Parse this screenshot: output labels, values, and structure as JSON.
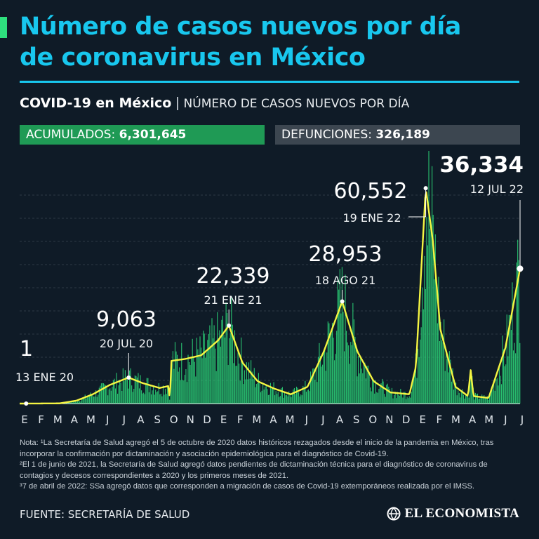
{
  "header": {
    "title_line1": "Número de casos nuevos por día",
    "title_line2": "de coronavirus en México"
  },
  "subtitle": {
    "bold": "COVID-19 en México",
    "separator": "|",
    "light": "NÚMERO DE CASOS NUEVOS POR DÍA"
  },
  "stats": {
    "cumulative_label": "ACUMULADOS:",
    "cumulative_value": "6,301,645",
    "deaths_label": "DEFUNCIONES:",
    "deaths_value": "326,189"
  },
  "colors": {
    "background": "#0f1b27",
    "title": "#18c7ee",
    "bars": "#2ee07e",
    "line": "#f5f542",
    "green_box": "#1f9a55",
    "gray_box": "#3c4650"
  },
  "chart_data": {
    "type": "bar",
    "overlay": "line",
    "title": "",
    "xlabel": "",
    "ylabel": "",
    "ylim": [
      0,
      62000
    ],
    "grid": true,
    "month_ticks": [
      "E",
      "F",
      "M",
      "A",
      "M",
      "J",
      "J",
      "A",
      "S",
      "O",
      "N",
      "D",
      "E",
      "F",
      "M",
      "A",
      "M",
      "J",
      "J",
      "A",
      "S",
      "O",
      "N",
      "D",
      "E",
      "F",
      "M",
      "A",
      "M",
      "J",
      "J"
    ],
    "trend_anchors": [
      {
        "date": "2020-01-13",
        "value": 1
      },
      {
        "date": "2020-03-15",
        "value": 50
      },
      {
        "date": "2020-04-15",
        "value": 800
      },
      {
        "date": "2020-05-15",
        "value": 2500
      },
      {
        "date": "2020-06-15",
        "value": 5000
      },
      {
        "date": "2020-07-20",
        "value": 7000
      },
      {
        "date": "2020-08-15",
        "value": 5500
      },
      {
        "date": "2020-09-15",
        "value": 4200
      },
      {
        "date": "2020-10-01",
        "value": 4700
      },
      {
        "date": "2020-10-04",
        "value": 1000
      },
      {
        "date": "2020-10-07",
        "value": 11500
      },
      {
        "date": "2020-11-01",
        "value": 12000
      },
      {
        "date": "2020-12-01",
        "value": 13000
      },
      {
        "date": "2021-01-01",
        "value": 17000
      },
      {
        "date": "2021-01-21",
        "value": 21000
      },
      {
        "date": "2021-02-15",
        "value": 11000
      },
      {
        "date": "2021-03-15",
        "value": 6000
      },
      {
        "date": "2021-04-15",
        "value": 4000
      },
      {
        "date": "2021-05-15",
        "value": 2500
      },
      {
        "date": "2021-06-15",
        "value": 4500
      },
      {
        "date": "2021-07-15",
        "value": 14000
      },
      {
        "date": "2021-08-18",
        "value": 27500
      },
      {
        "date": "2021-09-15",
        "value": 14000
      },
      {
        "date": "2021-10-15",
        "value": 6000
      },
      {
        "date": "2021-11-15",
        "value": 3000
      },
      {
        "date": "2021-12-20",
        "value": 2500
      },
      {
        "date": "2022-01-01",
        "value": 10000
      },
      {
        "date": "2022-01-19",
        "value": 58000
      },
      {
        "date": "2022-02-01",
        "value": 44000
      },
      {
        "date": "2022-02-15",
        "value": 20000
      },
      {
        "date": "2022-03-15",
        "value": 4500
      },
      {
        "date": "2022-04-07",
        "value": 2000
      },
      {
        "date": "2022-04-12",
        "value": 9000
      },
      {
        "date": "2022-04-17",
        "value": 2000
      },
      {
        "date": "2022-05-15",
        "value": 1500
      },
      {
        "date": "2022-06-15",
        "value": 15000
      },
      {
        "date": "2022-07-12",
        "value": 36334
      }
    ],
    "annotations": [
      {
        "date": "2020-01-13",
        "value": 1,
        "label": "1",
        "date_label": "13 ENE 20",
        "emphasis": false
      },
      {
        "date": "2020-07-20",
        "value": 9063,
        "label": "9,063",
        "date_label": "20 JUL 20",
        "emphasis": false
      },
      {
        "date": "2021-01-21",
        "value": 22339,
        "label": "22,339",
        "date_label": "21 ENE 21",
        "emphasis": false
      },
      {
        "date": "2021-08-18",
        "value": 28953,
        "label": "28,953",
        "date_label": "18 AGO 21",
        "emphasis": false
      },
      {
        "date": "2022-01-19",
        "value": 60552,
        "label": "60,552",
        "date_label": "19 ENE 22",
        "emphasis": false
      },
      {
        "date": "2022-07-12",
        "value": 36334,
        "label": "36,334",
        "date_label": "12 JUL 22",
        "emphasis": true
      }
    ]
  },
  "notes": {
    "n1": "Nota: ¹La Secretaría de Salud agregó el 5 de octubre de 2020 datos históricos rezagados desde el inicio de la pandemia en México, tras incorporar la confirmación por dictaminación y asociación epidemiológica para el diagnóstico de Covid-19.",
    "n2": "²El 1 de junio de 2021, la Secretaría de Salud agregó datos pendientes de dictaminación técnica para el diagnóstico de coronavirus de contagios y decesos correspondientes a 2020 y los primeros meses de 2021.",
    "n3": "³7 de abril de 2022: SSa agregó datos que corresponden a migración de casos de Covid-19 extemporáneos realizada por el IMSS."
  },
  "footer": {
    "source": "FUENTE: SECRETARÍA DE SALUD",
    "logo_text": "EL ECONOMISTA",
    "logo_icon": "globe-icon"
  }
}
